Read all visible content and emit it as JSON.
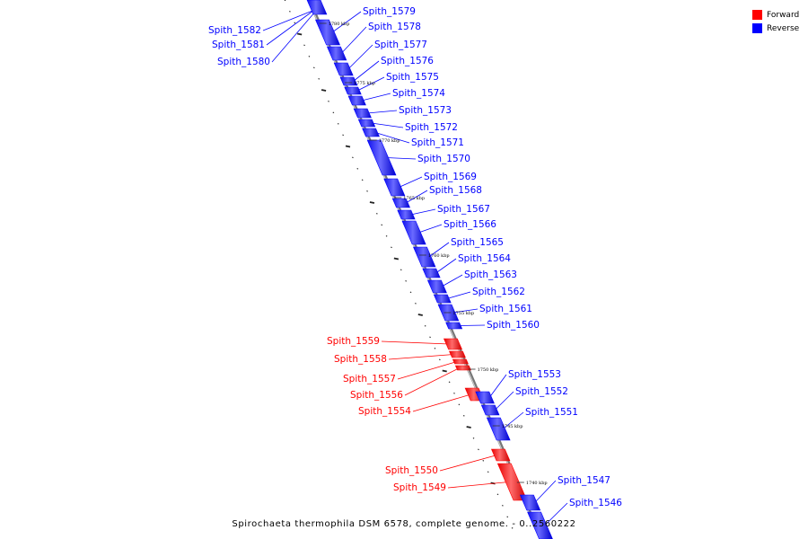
{
  "legend": {
    "forward": {
      "label": "Forward",
      "color": "#ff0000"
    },
    "reverse": {
      "label": "Reverse",
      "color": "#0000ff"
    }
  },
  "caption": "Spirochaeta thermophila DSM 6578, complete genome. - 0..2560222",
  "ticks": [
    "1780 kbp",
    "1775 kbp",
    "1770 kbp",
    "1765 kbp",
    "1760 kbp",
    "1755 kbp",
    "1750 kbp",
    "1745 kbp",
    "1740 kbp"
  ],
  "genes": [
    {
      "name": "Spith_1582",
      "strand": "reverse"
    },
    {
      "name": "Spith_1581",
      "strand": "reverse"
    },
    {
      "name": "Spith_1580",
      "strand": "reverse"
    },
    {
      "name": "Spith_1579",
      "strand": "reverse"
    },
    {
      "name": "Spith_1578",
      "strand": "reverse"
    },
    {
      "name": "Spith_1577",
      "strand": "reverse"
    },
    {
      "name": "Spith_1576",
      "strand": "reverse"
    },
    {
      "name": "Spith_1575",
      "strand": "reverse"
    },
    {
      "name": "Spith_1574",
      "strand": "reverse"
    },
    {
      "name": "Spith_1573",
      "strand": "reverse"
    },
    {
      "name": "Spith_1572",
      "strand": "reverse"
    },
    {
      "name": "Spith_1571",
      "strand": "reverse"
    },
    {
      "name": "Spith_1570",
      "strand": "reverse"
    },
    {
      "name": "Spith_1569",
      "strand": "reverse"
    },
    {
      "name": "Spith_1568",
      "strand": "reverse"
    },
    {
      "name": "Spith_1567",
      "strand": "reverse"
    },
    {
      "name": "Spith_1566",
      "strand": "reverse"
    },
    {
      "name": "Spith_1565",
      "strand": "reverse"
    },
    {
      "name": "Spith_1564",
      "strand": "reverse"
    },
    {
      "name": "Spith_1563",
      "strand": "reverse"
    },
    {
      "name": "Spith_1562",
      "strand": "reverse"
    },
    {
      "name": "Spith_1561",
      "strand": "reverse"
    },
    {
      "name": "Spith_1560",
      "strand": "reverse"
    },
    {
      "name": "Spith_1559",
      "strand": "forward"
    },
    {
      "name": "Spith_1558",
      "strand": "forward"
    },
    {
      "name": "Spith_1557",
      "strand": "forward"
    },
    {
      "name": "Spith_1556",
      "strand": "forward"
    },
    {
      "name": "Spith_1554",
      "strand": "forward"
    },
    {
      "name": "Spith_1553",
      "strand": "reverse"
    },
    {
      "name": "Spith_1552",
      "strand": "reverse"
    },
    {
      "name": "Spith_1551",
      "strand": "reverse"
    },
    {
      "name": "Spith_1550",
      "strand": "forward"
    },
    {
      "name": "Spith_1549",
      "strand": "forward"
    },
    {
      "name": "Spith_1547",
      "strand": "reverse"
    },
    {
      "name": "Spith_1546",
      "strand": "reverse"
    }
  ]
}
